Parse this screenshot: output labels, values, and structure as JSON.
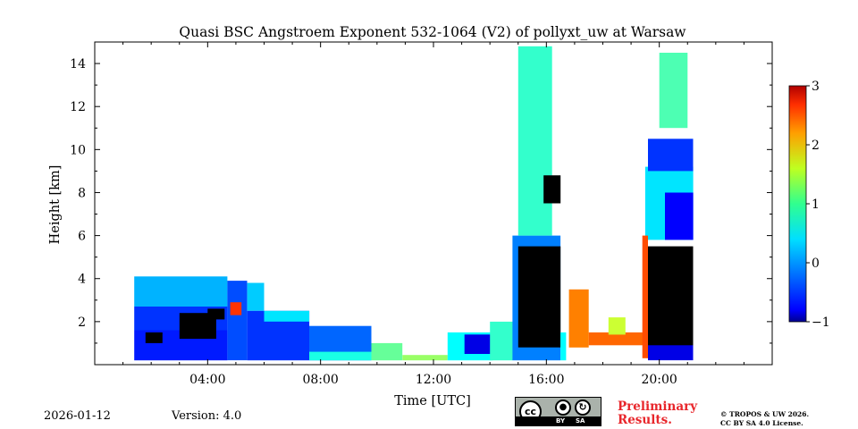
{
  "chart_data": {
    "type": "heatmap",
    "title": "Quasi BSC Angstroem Exponent 532-1064 (V2) of pollyxt_uw at Warsaw",
    "xlabel": "Time [UTC]",
    "ylabel": "Height [km]",
    "xlim_hours": [
      0,
      24
    ],
    "ylim_km": [
      0,
      15
    ],
    "x_ticks": [
      {
        "hour": 4,
        "label": "04:00"
      },
      {
        "hour": 8,
        "label": "08:00"
      },
      {
        "hour": 12,
        "label": "12:00"
      },
      {
        "hour": 16,
        "label": "16:00"
      },
      {
        "hour": 20,
        "label": "20:00"
      }
    ],
    "y_ticks": [
      {
        "km": 2,
        "label": "2"
      },
      {
        "km": 4,
        "label": "4"
      },
      {
        "km": 6,
        "label": "6"
      },
      {
        "km": 8,
        "label": "8"
      },
      {
        "km": 10,
        "label": "10"
      },
      {
        "km": 12,
        "label": "12"
      },
      {
        "km": 14,
        "label": "14"
      }
    ],
    "colorbar": {
      "range": [
        -1,
        3
      ],
      "colormap": "jet",
      "ticks": [
        {
          "value": 3,
          "label": "3"
        },
        {
          "value": 2,
          "label": "2"
        },
        {
          "value": 1,
          "label": "1"
        },
        {
          "value": 0,
          "label": "0"
        },
        {
          "value": -1,
          "label": "−1"
        }
      ]
    },
    "cells": [
      {
        "t0": 1.4,
        "t1": 4.7,
        "h0": 2.7,
        "h1": 4.1,
        "v": 0.2
      },
      {
        "t0": 1.4,
        "t1": 4.7,
        "h0": 1.6,
        "h1": 2.7,
        "v": -0.3
      },
      {
        "t0": 1.4,
        "t1": 4.7,
        "h0": 0.2,
        "h1": 1.6,
        "v": -0.4
      },
      {
        "t0": 1.8,
        "t1": 2.4,
        "h0": 1.0,
        "h1": 1.5,
        "v": "black"
      },
      {
        "t0": 3.0,
        "t1": 4.3,
        "h0": 1.2,
        "h1": 2.4,
        "v": "black"
      },
      {
        "t0": 4.0,
        "t1": 4.6,
        "h0": 2.1,
        "h1": 2.6,
        "v": "black"
      },
      {
        "t0": 4.7,
        "t1": 5.4,
        "h0": 0.2,
        "h1": 3.9,
        "v": -0.2
      },
      {
        "t0": 4.8,
        "t1": 5.2,
        "h0": 2.3,
        "h1": 2.9,
        "v": 2.3
      },
      {
        "t0": 5.4,
        "t1": 6.0,
        "h0": 2.5,
        "h1": 3.8,
        "v": 0.3
      },
      {
        "t0": 5.4,
        "t1": 7.6,
        "h0": 0.2,
        "h1": 2.5,
        "v": -0.3
      },
      {
        "t0": 6.0,
        "t1": 7.6,
        "h0": 2.0,
        "h1": 2.5,
        "v": 0.4
      },
      {
        "t0": 7.6,
        "t1": 9.8,
        "h0": 0.2,
        "h1": 1.8,
        "v": -0.1
      },
      {
        "t0": 7.6,
        "t1": 9.8,
        "h0": 0.2,
        "h1": 0.6,
        "v": 0.6
      },
      {
        "t0": 9.8,
        "t1": 10.9,
        "h0": 0.2,
        "h1": 1.0,
        "v": 0.9
      },
      {
        "t0": 10.9,
        "t1": 12.5,
        "h0": 0.2,
        "h1": 0.45,
        "v": 1.1
      },
      {
        "t0": 12.5,
        "t1": 14.1,
        "h0": 0.2,
        "h1": 1.5,
        "v": 0.5
      },
      {
        "t0": 13.1,
        "t1": 14.1,
        "h0": 0.5,
        "h1": 1.4,
        "v": -0.6
      },
      {
        "t0": 14.0,
        "t1": 14.8,
        "h0": 0.2,
        "h1": 2.0,
        "v": 0.7
      },
      {
        "t0": 14.8,
        "t1": 16.5,
        "h0": 0.2,
        "h1": 6.0,
        "v": 0.0
      },
      {
        "t0": 15.0,
        "t1": 16.5,
        "h0": 0.8,
        "h1": 5.5,
        "v": "black"
      },
      {
        "t0": 15.0,
        "t1": 16.2,
        "h0": 6.0,
        "h1": 14.8,
        "v": 0.7
      },
      {
        "t0": 15.9,
        "t1": 16.5,
        "h0": 7.5,
        "h1": 8.8,
        "v": "black"
      },
      {
        "t0": 16.5,
        "t1": 16.7,
        "h0": 0.2,
        "h1": 1.5,
        "v": 0.5
      },
      {
        "t0": 16.8,
        "t1": 17.5,
        "h0": 0.8,
        "h1": 3.5,
        "v": 2.0
      },
      {
        "t0": 17.5,
        "t1": 19.5,
        "h0": 0.9,
        "h1": 1.5,
        "v": 2.1
      },
      {
        "t0": 18.2,
        "t1": 18.8,
        "h0": 1.4,
        "h1": 2.2,
        "v": 1.3
      },
      {
        "t0": 19.5,
        "t1": 21.2,
        "h0": 5.8,
        "h1": 9.2,
        "v": 0.4
      },
      {
        "t0": 19.6,
        "t1": 21.2,
        "h0": 9.0,
        "h1": 10.5,
        "v": -0.3
      },
      {
        "t0": 20.2,
        "t1": 21.2,
        "h0": 5.8,
        "h1": 8.0,
        "v": -0.5
      },
      {
        "t0": 19.6,
        "t1": 21.2,
        "h0": 0.8,
        "h1": 5.5,
        "v": "black"
      },
      {
        "t0": 19.6,
        "t1": 21.2,
        "h0": 0.2,
        "h1": 0.9,
        "v": -0.6
      },
      {
        "t0": 19.4,
        "t1": 19.6,
        "h0": 0.3,
        "h1": 6.0,
        "v": 2.2
      },
      {
        "t0": 20.0,
        "t1": 21.0,
        "h0": 11.0,
        "h1": 14.5,
        "v": 0.8
      }
    ]
  },
  "footer": {
    "date": "2026-01-12",
    "version": "Version: 4.0",
    "license_badge": {
      "cc": "cc",
      "by": "BY",
      "sa": "SA"
    },
    "preliminary_line1": "Preliminary",
    "preliminary_line2": "Results.",
    "copyright_line1": "© TROPOS & UW 2026.",
    "copyright_line2": "CC BY SA 4.0 License."
  }
}
